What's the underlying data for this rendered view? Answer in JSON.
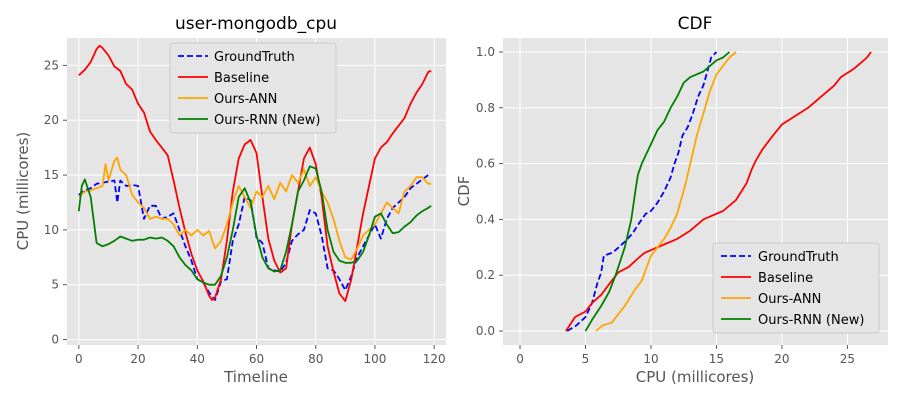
{
  "chart_data": [
    {
      "type": "line",
      "title": "user-mongodb_cpu",
      "xlabel": "Timeline",
      "ylabel": "CPU (millicores)",
      "xlim": [
        -4,
        124
      ],
      "ylim": [
        -0.5,
        27.5
      ],
      "xticks": [
        0,
        20,
        40,
        60,
        80,
        100,
        120
      ],
      "yticks": [
        0,
        5,
        10,
        15,
        20,
        25
      ],
      "grid": true,
      "legend": "top-center",
      "series": [
        {
          "name": "GroundTruth",
          "color": "#0000ff",
          "dash": "dashed",
          "x": [
            0,
            2,
            4,
            6,
            8,
            10,
            12,
            13,
            14,
            16,
            18,
            20,
            22,
            24,
            26,
            28,
            30,
            32,
            34,
            36,
            38,
            40,
            42,
            44,
            46,
            48,
            50,
            52,
            54,
            56,
            58,
            60,
            62,
            64,
            66,
            68,
            70,
            72,
            74,
            76,
            78,
            80,
            82,
            84,
            86,
            88,
            90,
            92,
            94,
            96,
            98,
            100,
            102,
            104,
            106,
            108,
            110,
            112,
            114,
            116,
            118
          ],
          "y": [
            13.2,
            13.6,
            13.8,
            14.2,
            14.3,
            14.4,
            14.5,
            12.5,
            14.5,
            14.0,
            14.1,
            14.0,
            11.0,
            12.2,
            12.2,
            11.0,
            11.2,
            11.5,
            10.0,
            8.5,
            7.2,
            5.5,
            5.2,
            4.3,
            3.6,
            5.3,
            5.5,
            9.0,
            10.5,
            13.0,
            12.7,
            9.3,
            8.8,
            6.5,
            6.3,
            6.2,
            7.0,
            9.0,
            9.6,
            10.0,
            11.8,
            11.5,
            9.5,
            6.5,
            6.3,
            5.5,
            4.5,
            5.8,
            7.5,
            8.5,
            9.5,
            10.5,
            9.2,
            11.0,
            12.0,
            12.5,
            13.0,
            13.8,
            14.2,
            14.6,
            15.0
          ]
        },
        {
          "name": "Baseline",
          "color": "#ff0000",
          "dash": "solid",
          "x": [
            0,
            2,
            4,
            6,
            7,
            8,
            10,
            12,
            14,
            16,
            18,
            20,
            22,
            24,
            26,
            28,
            30,
            32,
            34,
            36,
            38,
            40,
            42,
            44,
            45,
            46,
            48,
            50,
            52,
            54,
            56,
            58,
            60,
            62,
            64,
            66,
            68,
            70,
            72,
            74,
            76,
            78,
            80,
            82,
            84,
            86,
            88,
            90,
            92,
            94,
            96,
            98,
            100,
            102,
            104,
            106,
            108,
            110,
            112,
            114,
            116,
            118,
            119
          ],
          "y": [
            24.1,
            24.6,
            25.3,
            26.5,
            26.8,
            26.6,
            25.9,
            24.9,
            24.5,
            23.3,
            22.8,
            21.5,
            20.7,
            19.0,
            18.2,
            17.5,
            16.8,
            14.5,
            12.0,
            9.8,
            7.8,
            6.3,
            5.3,
            4.0,
            3.6,
            3.8,
            5.5,
            9.0,
            13.5,
            16.5,
            17.8,
            18.2,
            17.0,
            13.0,
            9.2,
            7.2,
            6.1,
            6.5,
            10.5,
            13.5,
            16.5,
            17.5,
            16.0,
            13.0,
            8.5,
            6.2,
            4.2,
            3.5,
            5.5,
            8.5,
            11.5,
            14.0,
            16.5,
            17.5,
            18.0,
            18.8,
            19.5,
            20.2,
            21.5,
            22.5,
            23.3,
            24.4,
            24.5
          ]
        },
        {
          "name": "Ours-ANN",
          "color": "#ffa500",
          "dash": "solid",
          "x": [
            0,
            2,
            4,
            6,
            8,
            9,
            10,
            12,
            13,
            14,
            16,
            18,
            20,
            22,
            24,
            26,
            28,
            30,
            32,
            34,
            36,
            38,
            40,
            42,
            44,
            46,
            48,
            50,
            52,
            54,
            56,
            58,
            60,
            62,
            64,
            66,
            68,
            70,
            72,
            74,
            76,
            78,
            80,
            82,
            84,
            86,
            88,
            90,
            92,
            94,
            96,
            98,
            100,
            102,
            104,
            106,
            108,
            110,
            112,
            114,
            116,
            118,
            119
          ],
          "y": [
            13.0,
            13.5,
            13.6,
            13.8,
            14.0,
            16.0,
            14.5,
            16.3,
            16.6,
            15.5,
            15.0,
            13.2,
            12.5,
            12.0,
            11.0,
            11.2,
            11.0,
            11.0,
            10.5,
            9.5,
            10.0,
            9.5,
            10.0,
            9.5,
            9.9,
            8.3,
            9.0,
            10.5,
            12.5,
            14.0,
            13.0,
            12.0,
            13.5,
            13.0,
            14.0,
            12.8,
            14.3,
            13.5,
            15.0,
            14.3,
            15.5,
            14.0,
            14.8,
            13.5,
            12.5,
            11.0,
            9.0,
            7.5,
            7.3,
            8.3,
            9.5,
            10.0,
            10.5,
            11.5,
            12.5,
            12.0,
            11.5,
            13.5,
            14.0,
            14.8,
            14.8,
            14.2,
            14.2
          ]
        },
        {
          "name": "Ours-RNN (New)",
          "color": "#008000",
          "dash": "solid",
          "x": [
            0,
            1,
            2,
            4,
            6,
            8,
            10,
            12,
            14,
            16,
            18,
            20,
            22,
            24,
            26,
            28,
            30,
            32,
            34,
            36,
            38,
            40,
            42,
            44,
            46,
            48,
            50,
            52,
            54,
            56,
            58,
            60,
            62,
            64,
            66,
            68,
            70,
            72,
            74,
            76,
            78,
            80,
            82,
            84,
            86,
            88,
            90,
            92,
            94,
            96,
            98,
            100,
            102,
            104,
            106,
            108,
            110,
            112,
            114,
            116,
            118,
            119
          ],
          "y": [
            11.7,
            14.0,
            14.6,
            13.0,
            8.8,
            8.5,
            8.7,
            9.0,
            9.4,
            9.2,
            9.0,
            9.1,
            9.1,
            9.3,
            9.2,
            9.3,
            9.0,
            8.5,
            7.5,
            6.8,
            6.3,
            5.5,
            5.2,
            5.0,
            5.0,
            5.8,
            7.5,
            10.0,
            13.0,
            13.8,
            12.5,
            9.5,
            7.5,
            6.5,
            6.2,
            6.3,
            8.0,
            10.5,
            13.5,
            14.5,
            15.8,
            15.6,
            13.5,
            10.0,
            8.0,
            7.2,
            7.0,
            7.0,
            7.2,
            8.0,
            9.5,
            11.2,
            11.5,
            10.5,
            9.7,
            9.8,
            10.3,
            10.7,
            11.3,
            11.7,
            12.0,
            12.2
          ]
        }
      ]
    },
    {
      "type": "line",
      "title": "CDF",
      "xlabel": "CPU (millicores)",
      "ylabel": "CDF",
      "xlim": [
        -1.3,
        28.1
      ],
      "ylim": [
        -0.05,
        1.05
      ],
      "xticks": [
        0,
        5,
        10,
        15,
        20,
        25
      ],
      "yticks": [
        0.0,
        0.2,
        0.4,
        0.6,
        0.8,
        1.0
      ],
      "ytick_labels": [
        "0.0",
        "0.2",
        "0.4",
        "0.6",
        "0.8",
        "1.0"
      ],
      "grid": true,
      "legend": "lower-right",
      "series": [
        {
          "name": "GroundTruth",
          "color": "#0000ff",
          "dash": "dashed",
          "x": [
            3.6,
            4.3,
            5.0,
            5.5,
            5.9,
            6.2,
            6.4,
            7.0,
            7.3,
            8.0,
            8.6,
            9.0,
            9.3,
            9.6,
            10.0,
            10.5,
            11.0,
            11.5,
            11.8,
            12.1,
            12.4,
            12.8,
            13.2,
            13.6,
            14.0,
            14.3,
            14.6,
            15.0
          ],
          "y": [
            0.0,
            0.02,
            0.05,
            0.1,
            0.17,
            0.21,
            0.27,
            0.28,
            0.29,
            0.32,
            0.35,
            0.38,
            0.4,
            0.42,
            0.43,
            0.46,
            0.5,
            0.55,
            0.6,
            0.64,
            0.7,
            0.73,
            0.78,
            0.84,
            0.88,
            0.93,
            0.98,
            1.0
          ]
        },
        {
          "name": "Baseline",
          "color": "#ff0000",
          "dash": "solid",
          "x": [
            3.5,
            4.2,
            5.0,
            5.5,
            6.2,
            7.0,
            7.5,
            8.3,
            9.0,
            9.5,
            10.0,
            11.0,
            12.0,
            13.0,
            14.0,
            14.5,
            15.5,
            16.5,
            17.3,
            17.7,
            18.0,
            18.5,
            19.3,
            20.0,
            21.0,
            22.0,
            23.0,
            24.0,
            24.5,
            25.5,
            26.5,
            26.8
          ],
          "y": [
            0.0,
            0.05,
            0.07,
            0.1,
            0.13,
            0.18,
            0.21,
            0.23,
            0.26,
            0.28,
            0.29,
            0.31,
            0.33,
            0.36,
            0.4,
            0.41,
            0.43,
            0.47,
            0.53,
            0.58,
            0.61,
            0.65,
            0.7,
            0.74,
            0.77,
            0.8,
            0.84,
            0.88,
            0.91,
            0.94,
            0.98,
            1.0
          ]
        },
        {
          "name": "Ours-ANN",
          "color": "#ffa500",
          "dash": "solid",
          "x": [
            5.8,
            6.3,
            7.0,
            7.5,
            8.0,
            8.4,
            8.8,
            9.3,
            9.6,
            10.0,
            10.5,
            11.0,
            11.5,
            12.0,
            12.3,
            12.6,
            13.0,
            13.5,
            14.0,
            14.5,
            15.0,
            15.5,
            16.0,
            16.5
          ],
          "y": [
            0.0,
            0.02,
            0.03,
            0.06,
            0.09,
            0.12,
            0.15,
            0.18,
            0.22,
            0.27,
            0.3,
            0.33,
            0.37,
            0.42,
            0.47,
            0.52,
            0.6,
            0.7,
            0.78,
            0.86,
            0.92,
            0.95,
            0.98,
            1.0
          ]
        },
        {
          "name": "Ours-RNN (New)",
          "color": "#008000",
          "dash": "solid",
          "x": [
            5.0,
            5.5,
            6.2,
            6.8,
            7.3,
            8.0,
            8.5,
            8.8,
            9.0,
            9.3,
            9.6,
            10.0,
            10.5,
            11.0,
            11.5,
            12.0,
            12.5,
            13.0,
            13.5,
            14.0,
            14.5,
            15.0,
            15.5,
            16.0
          ],
          "y": [
            0.0,
            0.04,
            0.09,
            0.14,
            0.2,
            0.3,
            0.4,
            0.5,
            0.56,
            0.6,
            0.63,
            0.67,
            0.72,
            0.75,
            0.8,
            0.84,
            0.89,
            0.91,
            0.92,
            0.93,
            0.95,
            0.97,
            0.98,
            1.0
          ]
        }
      ]
    }
  ]
}
